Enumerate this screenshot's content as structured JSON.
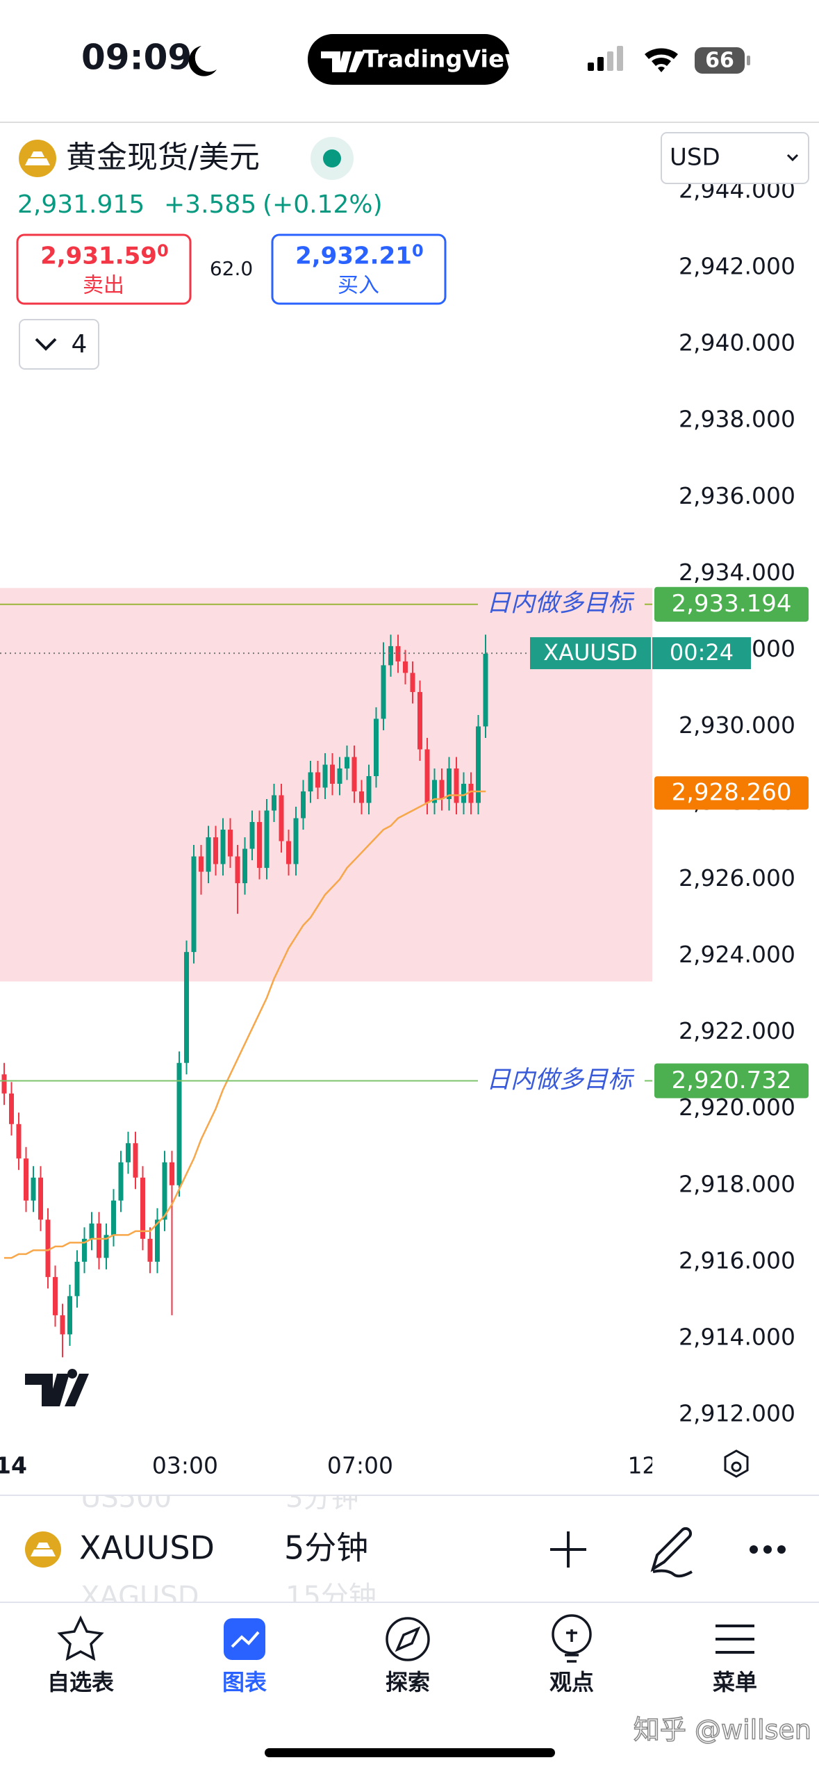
{
  "status_bar": {
    "time": "09:09",
    "battery": "66"
  },
  "brand": "TradingView",
  "header": {
    "symbol": "黄金现货/美元",
    "price": "2,931.915",
    "change": "+3.585",
    "change_pct": "(+0.12%)",
    "bid": {
      "price": "2,931.59",
      "sup": "0",
      "label": "卖出"
    },
    "spread": "62.0",
    "ask": {
      "price": "2,932.21",
      "sup": "0",
      "label": "买入"
    },
    "indicators": "4",
    "currency": "USD"
  },
  "chart": {
    "type": "candlestick",
    "ylim": [
      2911.2,
      2945.8
    ],
    "yticks": [
      {
        "value": 2912,
        "label": "2,912.000"
      },
      {
        "value": 2914,
        "label": "2,914.000"
      },
      {
        "value": 2916,
        "label": "2,916.000"
      },
      {
        "value": 2918,
        "label": "2,918.000"
      },
      {
        "value": 2920,
        "label": "2,920.000"
      },
      {
        "value": 2922,
        "label": "2,922.000"
      },
      {
        "value": 2924,
        "label": "2,924.000"
      },
      {
        "value": 2926,
        "label": "2,926.000"
      },
      {
        "value": 2928,
        "label": "2,928.000"
      },
      {
        "value": 2930,
        "label": "2,930.000"
      },
      {
        "value": 2932,
        "label": "2,932.000"
      },
      {
        "value": 2934,
        "label": "2,934.000"
      },
      {
        "value": 2936,
        "label": "2,936.000"
      },
      {
        "value": 2938,
        "label": "2,938.000"
      },
      {
        "value": 2940,
        "label": "2,940.000"
      },
      {
        "value": 2942,
        "label": "2,942.000"
      },
      {
        "value": 2944,
        "label": "2,944.000"
      }
    ],
    "xticks": [
      {
        "value": 0.95,
        "label": "14"
      },
      {
        "value": 24.8,
        "label": "03:00"
      },
      {
        "value": 48.8,
        "label": "07:00"
      },
      {
        "value": 88,
        "label": "12:"
      }
    ],
    "up_color": "#089981",
    "down_color": "#f23645",
    "open": [
      2920.9,
      2920.4,
      2919.6,
      2918.7,
      2917.6,
      2918.2,
      2917.1,
      2915.6,
      2914.6,
      2914.1,
      2915.1,
      2916.0,
      2916.6,
      2917.0,
      2916.1,
      2916.7,
      2917.6,
      2918.6,
      2919.1,
      2918.2,
      2916.6,
      2916.0,
      2917.1,
      2918.6,
      2918.0,
      2921.2,
      2924.1,
      2926.6,
      2926.2,
      2927.1,
      2926.4,
      2927.3,
      2926.6,
      2925.9,
      2926.8,
      2927.5,
      2926.3,
      2927.8,
      2928.2,
      2927.0,
      2926.4,
      2927.6,
      2928.3,
      2928.8,
      2928.4,
      2929.0,
      2928.5,
      2928.9,
      2929.2,
      2928.3,
      2928.0,
      2928.7,
      2930.2,
      2931.6,
      2932.1,
      2931.7,
      2931.4,
      2930.9,
      2929.4,
      2928.0,
      2928.6,
      2928.1,
      2928.9,
      2928.0,
      2928.5,
      2928.0,
      2930.0
    ],
    "high": [
      2921.2,
      2920.7,
      2919.9,
      2919.0,
      2918.5,
      2918.5,
      2917.4,
      2915.9,
      2914.9,
      2915.4,
      2916.3,
      2916.9,
      2917.3,
      2917.3,
      2917.0,
      2917.9,
      2918.9,
      2919.4,
      2919.4,
      2918.5,
      2916.9,
      2917.4,
      2918.9,
      2918.9,
      2921.5,
      2924.4,
      2926.9,
      2926.9,
      2927.4,
      2927.4,
      2927.6,
      2927.6,
      2926.9,
      2927.1,
      2927.8,
      2927.8,
      2928.1,
      2928.5,
      2928.5,
      2927.3,
      2927.9,
      2928.6,
      2929.1,
      2929.1,
      2929.3,
      2929.3,
      2929.2,
      2929.5,
      2929.5,
      2928.6,
      2929.0,
      2930.5,
      2932.2,
      2932.4,
      2932.4,
      2932.0,
      2931.7,
      2931.2,
      2929.7,
      2928.9,
      2928.9,
      2929.2,
      2929.2,
      2928.8,
      2928.8,
      2930.3,
      2932.4
    ],
    "low": [
      2920.1,
      2919.3,
      2918.4,
      2917.3,
      2917.3,
      2916.8,
      2915.3,
      2914.3,
      2913.5,
      2913.8,
      2914.8,
      2915.7,
      2916.3,
      2915.8,
      2915.8,
      2916.4,
      2917.3,
      2918.3,
      2917.9,
      2916.3,
      2915.7,
      2915.7,
      2916.8,
      2914.6,
      2917.7,
      2920.9,
      2923.8,
      2925.6,
      2925.9,
      2926.1,
      2926.1,
      2926.3,
      2925.1,
      2925.6,
      2926.5,
      2926.0,
      2926.0,
      2927.5,
      2926.7,
      2926.1,
      2926.1,
      2927.3,
      2928.0,
      2928.1,
      2928.1,
      2928.2,
      2928.2,
      2928.6,
      2928.0,
      2927.7,
      2927.7,
      2928.4,
      2929.9,
      2931.3,
      2931.4,
      2931.1,
      2930.6,
      2929.1,
      2927.7,
      2927.7,
      2927.8,
      2927.8,
      2927.7,
      2927.7,
      2927.7,
      2927.7,
      2929.7
    ],
    "close": [
      2920.4,
      2919.6,
      2918.7,
      2917.6,
      2918.2,
      2917.1,
      2915.6,
      2914.6,
      2914.1,
      2915.1,
      2916.0,
      2916.6,
      2917.0,
      2916.1,
      2916.7,
      2917.6,
      2918.6,
      2919.1,
      2918.2,
      2916.6,
      2916.0,
      2917.1,
      2918.6,
      2918.0,
      2921.2,
      2924.1,
      2926.6,
      2926.2,
      2927.1,
      2926.4,
      2927.3,
      2926.6,
      2925.9,
      2926.8,
      2927.5,
      2926.3,
      2927.8,
      2928.2,
      2927.0,
      2926.4,
      2927.6,
      2928.3,
      2928.8,
      2928.4,
      2929.0,
      2928.5,
      2928.9,
      2929.2,
      2928.3,
      2928.0,
      2928.7,
      2930.2,
      2931.6,
      2932.1,
      2931.7,
      2931.4,
      2930.9,
      2929.4,
      2928.0,
      2928.6,
      2928.1,
      2928.9,
      2928.0,
      2928.5,
      2928.0,
      2930.0,
      2931.9
    ],
    "ma": {
      "color": "#f7a74a",
      "values": [
        2916.1,
        2916.1,
        2916.2,
        2916.2,
        2916.3,
        2916.3,
        2916.3,
        2916.4,
        2916.4,
        2916.5,
        2916.5,
        2916.5,
        2916.6,
        2916.6,
        2916.6,
        2916.7,
        2916.7,
        2916.7,
        2916.8,
        2916.8,
        2916.8,
        2917.0,
        2917.2,
        2917.5,
        2917.9,
        2918.3,
        2918.7,
        2919.2,
        2919.6,
        2920.0,
        2920.5,
        2920.9,
        2921.3,
        2921.7,
        2922.1,
        2922.5,
        2922.9,
        2923.4,
        2923.8,
        2924.2,
        2924.5,
        2924.8,
        2925.0,
        2925.3,
        2925.6,
        2925.8,
        2926.0,
        2926.3,
        2926.5,
        2926.7,
        2926.9,
        2927.1,
        2927.3,
        2927.4,
        2927.6,
        2927.7,
        2927.8,
        2927.9,
        2928.0,
        2928.1,
        2928.1,
        2928.2,
        2928.2,
        2928.2,
        2928.3,
        2928.3,
        2928.3
      ],
      "value": 2928.26,
      "value_label": "2,928.260"
    },
    "zone": {
      "range": [
        2923.33,
        2933.62
      ],
      "color": "#fcdde1"
    },
    "lines": [
      {
        "label": "日内做多目标",
        "value": 2933.194,
        "value_label": "2,933.194",
        "color": "#9bb53a"
      },
      {
        "label": "日内做多目标",
        "value": 2920.732,
        "value_label": "2,920.732",
        "color": "#7cc36b"
      }
    ],
    "last_price": {
      "symbol": "XAUUSD",
      "countdown": "00:24",
      "value": 2931.915,
      "color": "#1e9e89"
    }
  },
  "toolbar": {
    "symbol": "XAUUSD",
    "interval": "5分钟",
    "ghost_above": [
      "US500",
      "3分钟"
    ],
    "ghost_below": [
      "XAGUSD",
      "15分钟"
    ]
  },
  "tabs": [
    {
      "label": "自选表"
    },
    {
      "label": "图表"
    },
    {
      "label": "探索"
    },
    {
      "label": "观点"
    },
    {
      "label": "菜单"
    }
  ],
  "watermark": "知乎 @willsen"
}
